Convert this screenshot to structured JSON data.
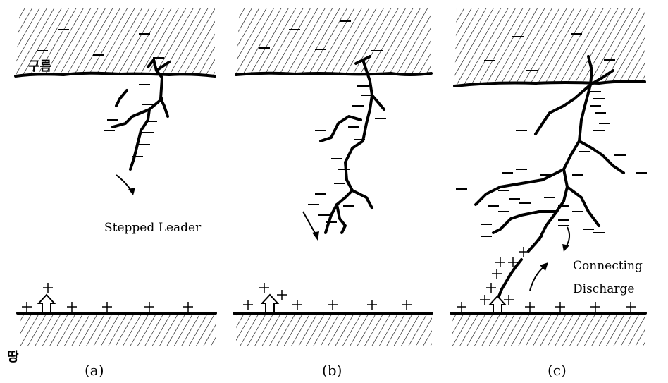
{
  "labels": {
    "cloud": "구름",
    "ground": "땅"
  },
  "panels": [
    {
      "caption": "(a)",
      "annotation": "Stepped Leader"
    },
    {
      "caption": "(b)"
    },
    {
      "caption": "(c)",
      "annotation_lines": [
        "Connecting",
        "Discharge"
      ]
    }
  ]
}
